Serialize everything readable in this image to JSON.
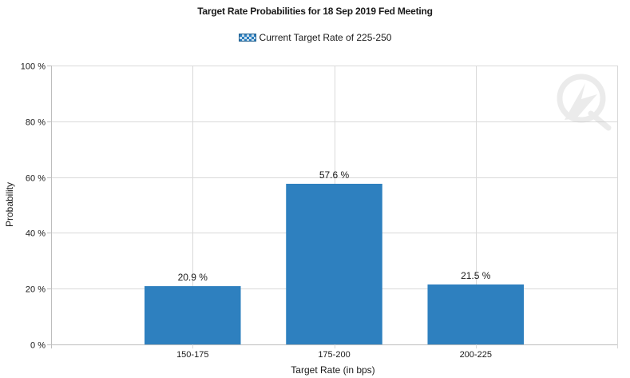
{
  "chart_data": {
    "type": "bar",
    "title": "Target Rate Probabilities for 18 Sep 2019 Fed Meeting",
    "legend": "Current Target Rate of 225-250",
    "xlabel": "Target Rate (in bps)",
    "ylabel": "Probability",
    "categories": [
      "150-175",
      "175-200",
      "200-225"
    ],
    "values": [
      20.9,
      57.6,
      21.5
    ],
    "value_labels": [
      "20.9 %",
      "57.6 %",
      "21.5 %"
    ],
    "y_ticks": [
      "0 %",
      "20 %",
      "40 %",
      "60 %",
      "80 %",
      "100 %"
    ],
    "ylim": [
      0,
      100
    ],
    "grid": true,
    "legend_position": "top-center",
    "bar_color": "#2e80bf",
    "grid_color": "#d9d9d9"
  }
}
